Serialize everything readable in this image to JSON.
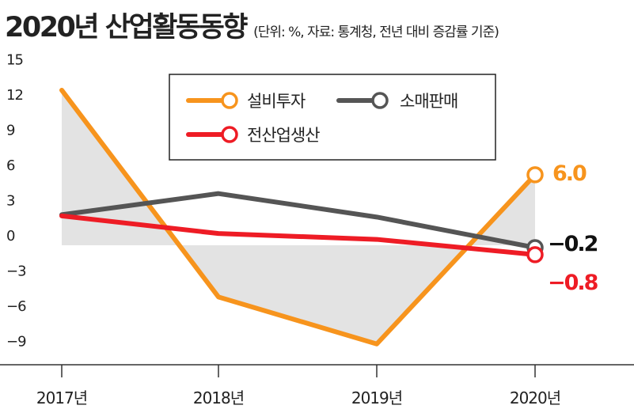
{
  "header": {
    "title": "2020년 산업활동동향",
    "subtitle": "(단위: %, 자료: 통계청, 전년 대비 증감률 기준)"
  },
  "colors": {
    "equipment": "#F7941D",
    "retail": "#555555",
    "industrial": "#EE1C25",
    "shade": "#E3E3E3",
    "axis": "#333333"
  },
  "chart_data": {
    "type": "line",
    "title": "2020년 산업활동동향",
    "subtitle": "(단위: %, 자료: 통계청, 전년 대비 증감률 기준)",
    "xlabel": "",
    "ylabel": "",
    "ylim": [
      -10.5,
      15
    ],
    "categories": [
      "2017년",
      "2018년",
      "2019년",
      "2020년"
    ],
    "yticks": [
      15,
      12,
      9,
      6,
      3,
      0,
      -3,
      -6,
      -9
    ],
    "ytick_labels": [
      "15",
      "12",
      "9",
      "6",
      "3",
      "0",
      "−3",
      "−6",
      "−9"
    ],
    "legend_position": "top-center",
    "series": [
      {
        "key": "equipment",
        "name": "설비투자",
        "values": [
          13.2,
          -4.4,
          -8.4,
          6.0
        ],
        "end_label": "6.0",
        "shaded": true
      },
      {
        "key": "retail",
        "name": "소매판매",
        "values": [
          2.6,
          4.4,
          2.4,
          -0.2
        ],
        "end_label": "−0.2",
        "shaded": false
      },
      {
        "key": "industrial",
        "name": "전산업생산",
        "values": [
          2.5,
          1.0,
          0.5,
          -0.8
        ],
        "end_label": "−0.8",
        "shaded": false
      }
    ]
  }
}
